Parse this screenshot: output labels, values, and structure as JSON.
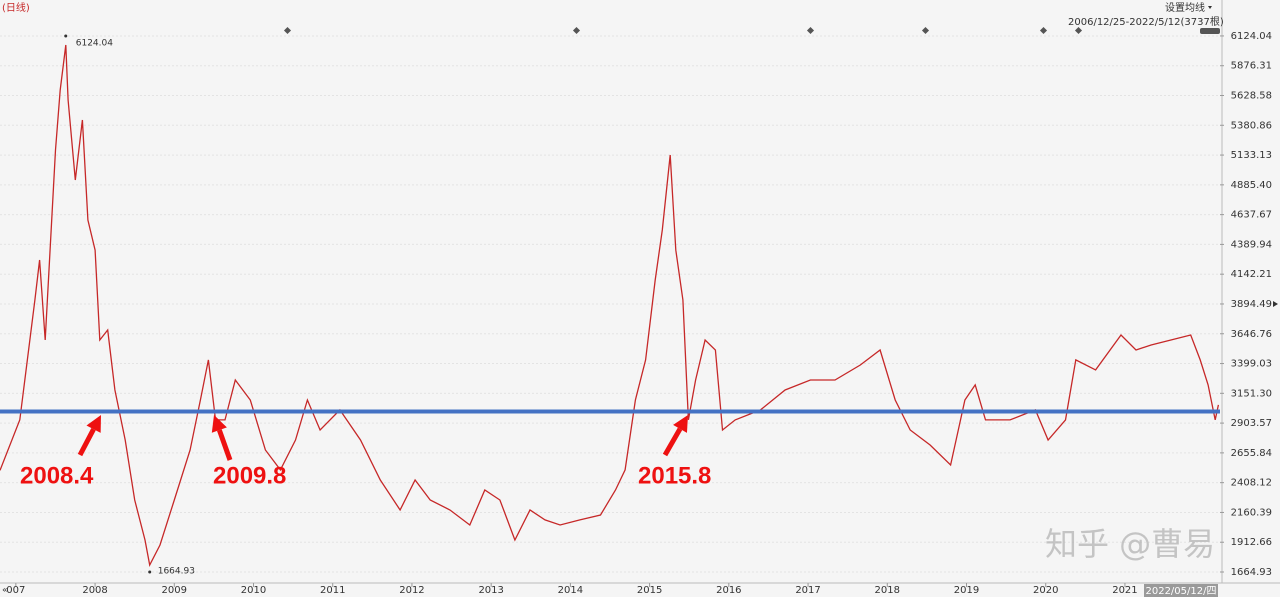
{
  "header": {
    "period": "(日线)",
    "ma_button": "设置均线",
    "range": "2006/12/25-2022/5/12(3737根)"
  },
  "chart_data": {
    "type": "line",
    "x": [
      2006.8,
      2007.05,
      2007.24,
      2007.3,
      2007.37,
      2007.5,
      2007.56,
      2007.63,
      2007.66,
      2007.75,
      2007.84,
      2007.91,
      2008.0,
      2008.06,
      2008.16,
      2008.25,
      2008.38,
      2008.5,
      2008.63,
      2008.69,
      2008.82,
      2009.0,
      2009.2,
      2009.33,
      2009.43,
      2009.52,
      2009.64,
      2009.77,
      2009.96,
      2010.15,
      2010.34,
      2010.53,
      2010.68,
      2010.84,
      2011.09,
      2011.35,
      2011.6,
      2011.85,
      2012.04,
      2012.23,
      2012.48,
      2012.73,
      2012.92,
      2013.11,
      2013.3,
      2013.49,
      2013.68,
      2013.87,
      2014.12,
      2014.38,
      2014.57,
      2014.69,
      2014.82,
      2014.95,
      2015.07,
      2015.16,
      2015.26,
      2015.33,
      2015.42,
      2015.49,
      2015.58,
      2015.7,
      2015.83,
      2015.92,
      2016.08,
      2016.4,
      2016.71,
      2017.03,
      2017.34,
      2017.66,
      2017.91,
      2018.1,
      2018.29,
      2018.54,
      2018.8,
      2018.98,
      2019.11,
      2019.24,
      2019.55,
      2019.87,
      2020.03,
      2020.25,
      2020.38,
      2020.63,
      2020.95,
      2021.14,
      2021.33,
      2021.58,
      2021.83,
      2021.95,
      2022.05,
      2022.14,
      2022.18
    ],
    "series": [
      {
        "color": "#c62828",
        "values": [
          2510,
          2930,
          3928,
          4260,
          3595,
          5175,
          5674,
          6049,
          5591,
          4926,
          5425,
          4593,
          4343,
          3595,
          3678,
          3179,
          2763,
          2264,
          1931,
          1723,
          1890,
          2264,
          2680,
          3096,
          3429,
          2930,
          2930,
          3262,
          3096,
          2680,
          2514,
          2763,
          3096,
          2846,
          3013,
          2763,
          2430,
          2181,
          2430,
          2264,
          2181,
          2056,
          2347,
          2264,
          1931,
          2181,
          2098,
          2056,
          2098,
          2139,
          2347,
          2514,
          3096,
          3429,
          4094,
          4510,
          5134,
          4343,
          3928,
          2930,
          3262,
          3595,
          3512,
          2846,
          2930,
          3013,
          3179,
          3262,
          3262,
          3387,
          3512,
          3096,
          2846,
          2721,
          2555,
          3096,
          3221,
          2930,
          2930,
          3013,
          2763,
          2930,
          3429,
          3346,
          3636,
          3512,
          3553,
          3595,
          3636,
          3429,
          3221,
          2930,
          3055
        ]
      }
    ],
    "xlim": [
      2006.8,
      2022.2
    ],
    "xticks": [
      {
        "value": 2007,
        "label": "007"
      },
      2008,
      2009,
      2010,
      2011,
      2012,
      2013,
      2014,
      2015,
      2016,
      2017,
      2018,
      2019,
      2020,
      2021
    ],
    "ylim": [
      1573.5,
      6423
    ],
    "yticks": [
      1664.93,
      1912.66,
      2160.39,
      2408.12,
      2655.84,
      {
        "value": 2903.57,
        "label": "2903.57"
      },
      {
        "value": 3151.3,
        "label": "3151.30"
      },
      3399.03,
      3646.76,
      3894.49,
      4142.21,
      4389.94,
      4637.67,
      {
        "value": 4885.4,
        "label": "4885.40"
      },
      5133.13,
      5380.86,
      5628.58,
      5876.31,
      6124.04
    ],
    "grid": true,
    "max": {
      "x": 2007.63,
      "value": 6124.04
    },
    "min": {
      "x": 2008.69,
      "value": 1664.93
    },
    "reference_line": {
      "value": 3000,
      "color": "#4472c4"
    },
    "annotations": [
      {
        "text": "2008.4"
      },
      {
        "text": "2009.8"
      },
      {
        "text": "2015.8"
      }
    ],
    "cursor_date": "2022/05/12/四"
  },
  "watermark": "知乎 @曹易"
}
